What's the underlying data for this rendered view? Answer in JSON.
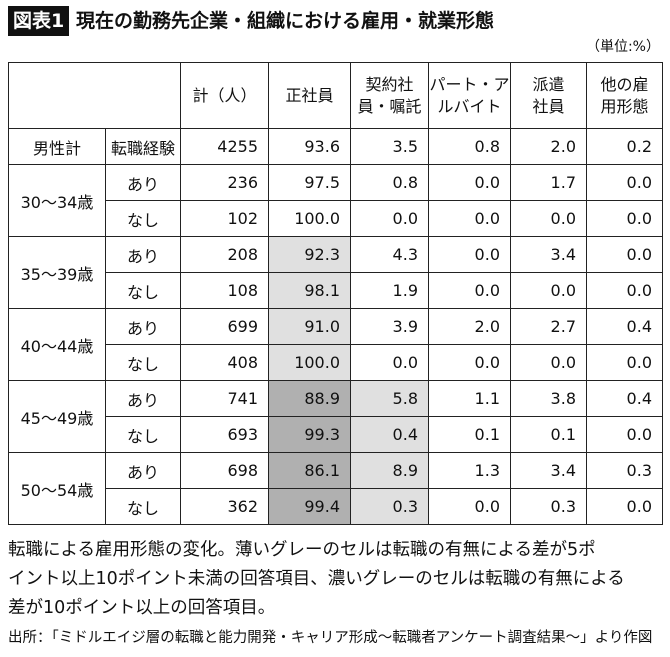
{
  "header": {
    "figure_label": "図表1",
    "title": "現在の勤務先企業・組織における雇用・就業形態"
  },
  "unit": "（単位:%）",
  "table": {
    "columns": [
      [
        "計（人）"
      ],
      [
        "正社員"
      ],
      [
        "契約社",
        "員・嘱託"
      ],
      [
        "パート・ア",
        "ルバイト"
      ],
      [
        "派遣",
        "社員"
      ],
      [
        "他の雇",
        "用形態"
      ]
    ],
    "groups": [
      {
        "label": "男性計",
        "rows": [
          {
            "label": "転職経験",
            "cells": [
              "4255",
              "93.6",
              "3.5",
              "0.8",
              "2.0",
              "0.2"
            ]
          }
        ]
      },
      {
        "label": "30～34歳",
        "rows": [
          {
            "label": "あり",
            "cells": [
              "236",
              "97.5",
              "0.8",
              "0.0",
              "1.7",
              "0.0"
            ]
          },
          {
            "label": "なし",
            "cells": [
              "102",
              "100.0",
              "0.0",
              "0.0",
              "0.0",
              "0.0"
            ]
          }
        ]
      },
      {
        "label": "35～39歳",
        "rows": [
          {
            "label": "あり",
            "cells": [
              "208",
              "92.3",
              "4.3",
              "0.0",
              "3.4",
              "0.0"
            ]
          },
          {
            "label": "なし",
            "cells": [
              "108",
              "98.1",
              "1.9",
              "0.0",
              "0.0",
              "0.0"
            ]
          }
        ]
      },
      {
        "label": "40～44歳",
        "rows": [
          {
            "label": "あり",
            "cells": [
              "699",
              "91.0",
              "3.9",
              "2.0",
              "2.7",
              "0.4"
            ]
          },
          {
            "label": "なし",
            "cells": [
              "408",
              "100.0",
              "0.0",
              "0.0",
              "0.0",
              "0.0"
            ]
          }
        ]
      },
      {
        "label": "45～49歳",
        "rows": [
          {
            "label": "あり",
            "cells": [
              "741",
              "88.9",
              "5.8",
              "1.1",
              "3.8",
              "0.4"
            ]
          },
          {
            "label": "なし",
            "cells": [
              "693",
              "99.3",
              "0.4",
              "0.1",
              "0.1",
              "0.0"
            ]
          }
        ]
      },
      {
        "label": "50～54歳",
        "rows": [
          {
            "label": "あり",
            "cells": [
              "698",
              "86.1",
              "8.9",
              "1.3",
              "3.4",
              "0.3"
            ]
          },
          {
            "label": "なし",
            "cells": [
              "362",
              "99.4",
              "0.3",
              "0.0",
              "0.3",
              "0.0"
            ]
          }
        ]
      }
    ]
  },
  "caption": [
    "転職による雇用形態の変化。薄いグレーのセルは転職の有無による差が5ポ",
    "イント以上10ポイント未満の回答項目、濃いグレーのセルは転職の有無による",
    "差が10ポイント以上の回答項目。"
  ],
  "source": "出所：「ミドルエイジ層の転職と能力開発・キャリア形成～転職者アンケート調査結果～」より作図"
}
